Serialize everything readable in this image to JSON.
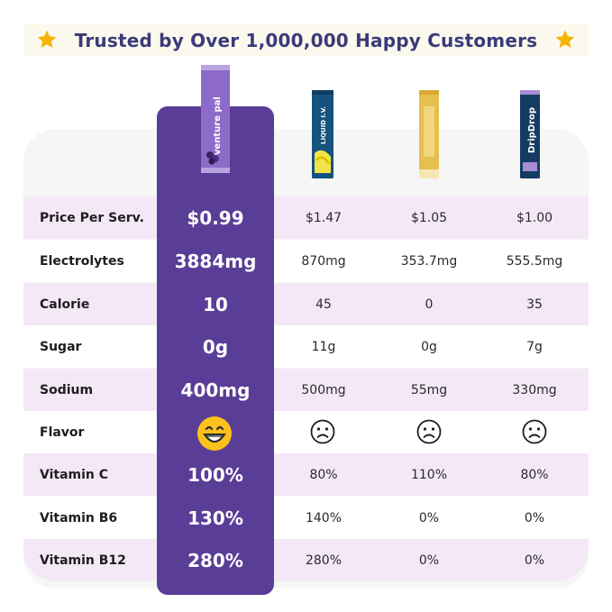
{
  "banner": {
    "title": "Trusted by Over 1,000,000 Happy Customers"
  },
  "colors": {
    "hero": "#5a3d96",
    "stripe": "#f4e8f7",
    "accent_star": "#f4b400",
    "title": "#3b3a7a"
  },
  "products": [
    {
      "name": "venture pal",
      "icon": "venture-pal-packet"
    },
    {
      "name": "LIQUID I.V.",
      "icon": "liquid-iv-packet"
    },
    {
      "name": "",
      "icon": "gold-packet"
    },
    {
      "name": "DripDrop",
      "icon": "dripdrop-packet"
    }
  ],
  "rows": [
    {
      "label": "Price Per Serv.",
      "hero": "$0.99",
      "c1": "$1.47",
      "c2": "$1.05",
      "c3": "$1.00"
    },
    {
      "label": "Electrolytes",
      "hero": "3884mg",
      "c1": "870mg",
      "c2": "353.7mg",
      "c3": "555.5mg"
    },
    {
      "label": "Calorie",
      "hero": "10",
      "c1": "45",
      "c2": "0",
      "c3": "35"
    },
    {
      "label": "Sugar",
      "hero": "0g",
      "c1": "11g",
      "c2": "0g",
      "c3": "7g"
    },
    {
      "label": "Sodium",
      "hero": "400mg",
      "c1": "500mg",
      "c2": "55mg",
      "c3": "330mg"
    },
    {
      "label": "Flavor",
      "hero_icon": "grinning-face-icon",
      "c1_icon": "frowning-face-icon",
      "c2_icon": "frowning-face-icon",
      "c3_icon": "frowning-face-icon"
    },
    {
      "label": "Vitamin C",
      "hero": "100%",
      "c1": "80%",
      "c2": "110%",
      "c3": "80%"
    },
    {
      "label": "Vitamin B6",
      "hero": "130%",
      "c1": "140%",
      "c2": "0%",
      "c3": "0%"
    },
    {
      "label": "Vitamin B12",
      "hero": "280%",
      "c1": "280%",
      "c2": "0%",
      "c3": "0%"
    }
  ]
}
